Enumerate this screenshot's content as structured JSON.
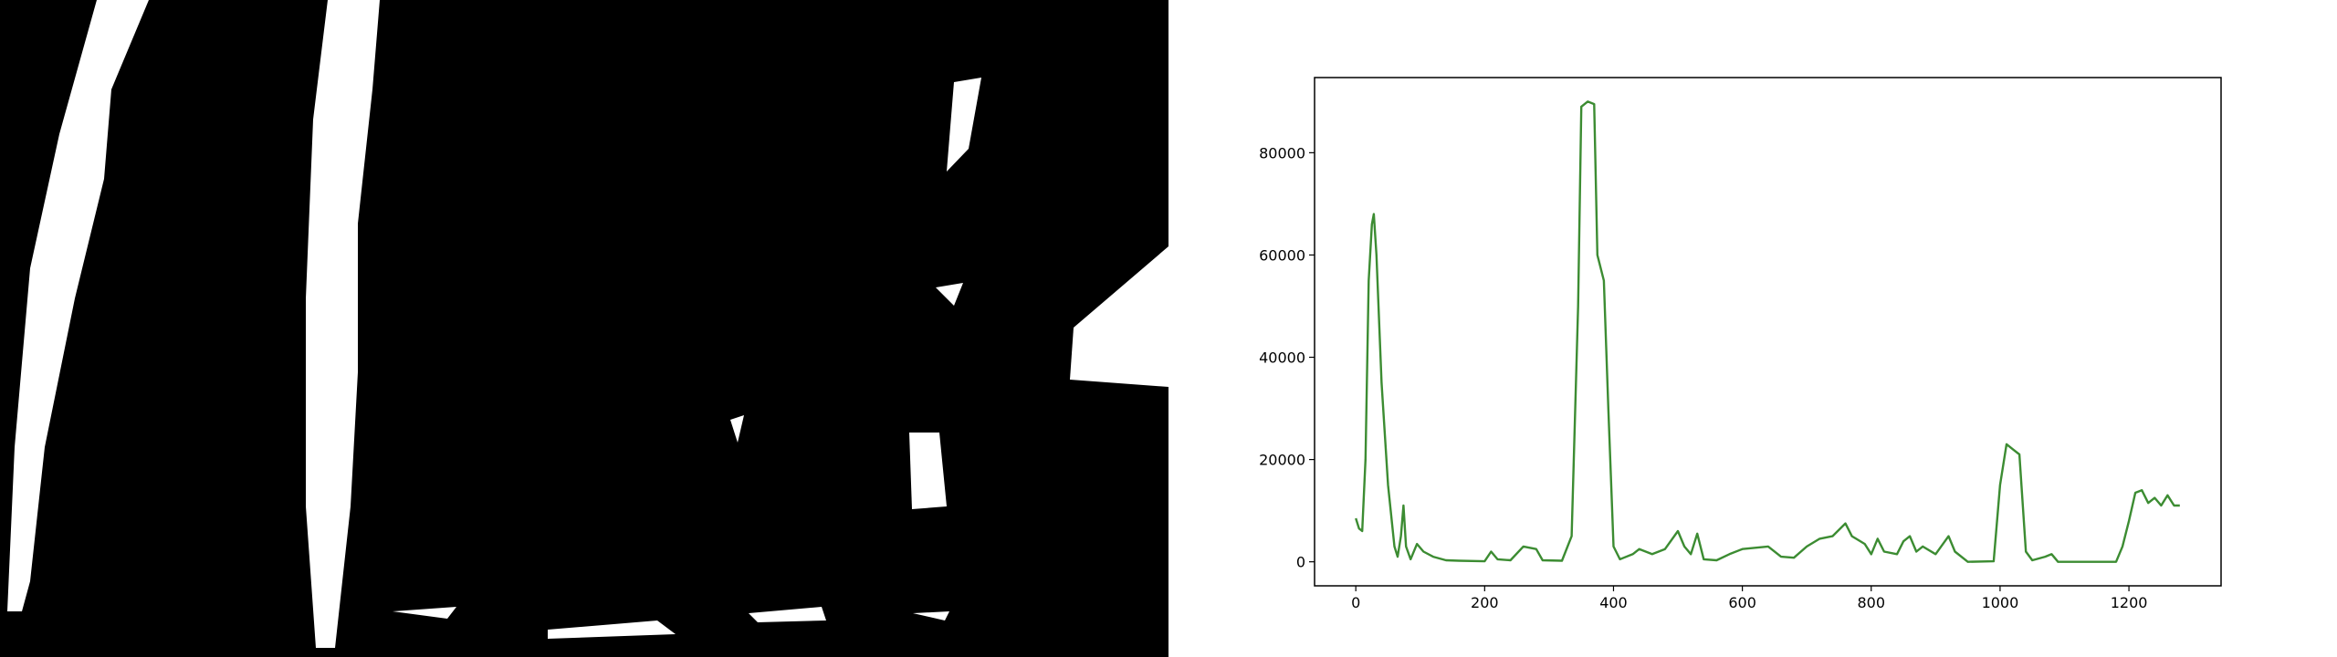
{
  "chart_data": {
    "type": "line",
    "x": [
      0,
      5,
      10,
      15,
      20,
      25,
      28,
      32,
      40,
      50,
      60,
      65,
      70,
      74,
      78,
      85,
      95,
      105,
      120,
      140,
      160,
      200,
      210,
      220,
      240,
      260,
      280,
      290,
      320,
      335,
      345,
      350,
      360,
      370,
      375,
      385,
      392,
      400,
      410,
      430,
      440,
      460,
      480,
      500,
      510,
      520,
      530,
      540,
      560,
      580,
      600,
      640,
      660,
      680,
      700,
      720,
      740,
      760,
      770,
      790,
      800,
      810,
      820,
      840,
      850,
      860,
      870,
      880,
      900,
      920,
      930,
      950,
      990,
      1000,
      1010,
      1020,
      1030,
      1040,
      1050,
      1070,
      1080,
      1090,
      1180,
      1190,
      1200,
      1210,
      1220,
      1230,
      1240,
      1250,
      1260,
      1270,
      1279
    ],
    "series": [
      {
        "color": "#3c8c32",
        "values": [
          8500,
          6500,
          6000,
          20000,
          55000,
          66000,
          68000,
          60000,
          35000,
          15000,
          3000,
          1000,
          5000,
          11000,
          3000,
          500,
          3500,
          2000,
          1000,
          300,
          200,
          100,
          2000,
          500,
          300,
          3000,
          2500,
          300,
          200,
          5000,
          50000,
          89000,
          90000,
          89500,
          60000,
          55000,
          30000,
          3000,
          500,
          1500,
          2500,
          1500,
          2500,
          6000,
          3000,
          1500,
          5500,
          500,
          300,
          1500,
          2500,
          3000,
          1000,
          800,
          3000,
          4500,
          5000,
          7500,
          5000,
          3500,
          1500,
          4500,
          2000,
          1500,
          4000,
          5000,
          2000,
          3000,
          1500,
          5000,
          2000,
          0,
          100,
          15000,
          23000,
          22000,
          21000,
          2000,
          300,
          1000,
          1500,
          0,
          0,
          3000,
          8000,
          13500,
          14000,
          11500,
          12500,
          11000,
          13000,
          11000,
          11000
        ]
      }
    ],
    "xlim": [
      -64,
      1343
    ],
    "xticks": [
      0,
      200,
      400,
      600,
      800,
      1000,
      1200
    ],
    "ylim": [
      -4700,
      94700
    ],
    "yticks": [
      0,
      20000,
      40000,
      60000,
      80000
    ]
  }
}
